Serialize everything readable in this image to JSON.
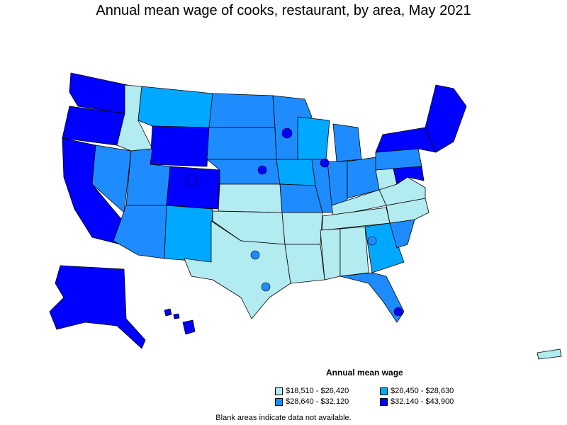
{
  "title": "Annual mean wage of cooks, restaurant, by area, May 2021",
  "legend": {
    "title": "Annual mean wage",
    "items": [
      {
        "label": "$18,510 - $26,420",
        "color": "#b2ebf0"
      },
      {
        "label": "$26,450 - $28,630",
        "color": "#00a9ff"
      },
      {
        "label": "$28,640 - $32,120",
        "color": "#1e8cff"
      },
      {
        "label": "$32,140 - $43,900",
        "color": "#0000ff"
      }
    ]
  },
  "footnote": "Blank areas indicate data not available.",
  "colors": {
    "border": "#000000",
    "background": "#ffffff"
  }
}
